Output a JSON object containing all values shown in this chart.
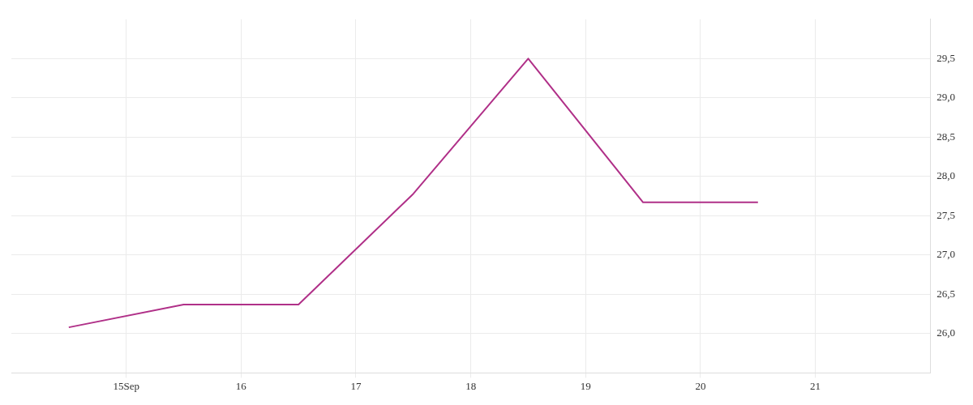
{
  "chart_data": {
    "type": "line",
    "x": [
      "--09-14T12:00",
      "--09-15T12:00",
      "--09-16T12:00",
      "--09-17T12:00",
      "--09-18T12:00",
      "--09-19T12:00",
      "--09-20T12:00"
    ],
    "series": [
      {
        "color": "#b03088",
        "values": [
          26.08,
          26.37,
          26.37,
          27.78,
          29.5,
          27.67,
          27.67
        ]
      }
    ],
    "xlim": [
      "--09-14",
      "--09-22"
    ],
    "xticks": [
      {
        "value": "--09-15",
        "label": "15Sep"
      },
      {
        "value": "--09-16",
        "label": "16"
      },
      {
        "value": "--09-17",
        "label": "17"
      },
      {
        "value": "--09-18",
        "label": "18"
      },
      {
        "value": "--09-19",
        "label": "19"
      },
      {
        "value": "--09-20",
        "label": "20"
      },
      {
        "value": "--09-21",
        "label": "21"
      }
    ],
    "ylim": [
      25.5,
      30
    ],
    "yticks": [
      {
        "value": 26,
        "label": "26,0"
      },
      {
        "value": 26.5,
        "label": "26,5"
      },
      {
        "value": 27,
        "label": "27,0"
      },
      {
        "value": 27.5,
        "label": "27,5"
      },
      {
        "value": 28,
        "label": "28,0"
      },
      {
        "value": 28.5,
        "label": "28,5"
      },
      {
        "value": 29,
        "label": "29,0"
      },
      {
        "value": 29.5,
        "label": "29,5"
      }
    ],
    "grid": true,
    "legend": false,
    "marker": "none",
    "line_style": "solid"
  }
}
